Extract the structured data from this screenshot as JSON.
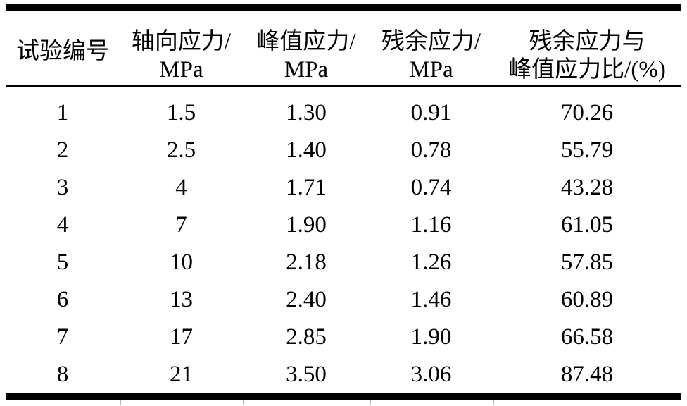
{
  "table": {
    "columns": [
      {
        "line1": "试验编号",
        "line2": ""
      },
      {
        "line1": "轴向应力/",
        "line2": "MPa"
      },
      {
        "line1": "峰值应力/",
        "line2": "MPa"
      },
      {
        "line1": "残余应力/",
        "line2": "MPa"
      },
      {
        "line1": "残余应力与",
        "line2": "峰值应力比/(%)"
      }
    ],
    "rows": [
      [
        "1",
        "1.5",
        "1.30",
        "0.91",
        "70.26"
      ],
      [
        "2",
        "2.5",
        "1.40",
        "0.78",
        "55.79"
      ],
      [
        "3",
        "4",
        "1.71",
        "0.74",
        "43.28"
      ],
      [
        "4",
        "7",
        "1.90",
        "1.16",
        "61.05"
      ],
      [
        "5",
        "10",
        "2.18",
        "1.26",
        "57.85"
      ],
      [
        "6",
        "13",
        "2.40",
        "1.46",
        "60.89"
      ],
      [
        "7",
        "17",
        "2.85",
        "1.90",
        "66.58"
      ],
      [
        "8",
        "21",
        "3.50",
        "3.06",
        "87.48"
      ]
    ]
  },
  "chart_data": {
    "type": "table",
    "columns": [
      "试验编号",
      "轴向应力/MPa",
      "峰值应力/MPa",
      "残余应力/MPa",
      "残余应力与峰值应力比/(%)"
    ],
    "rows": [
      [
        1,
        1.5,
        1.3,
        0.91,
        70.26
      ],
      [
        2,
        2.5,
        1.4,
        0.78,
        55.79
      ],
      [
        3,
        4,
        1.71,
        0.74,
        43.28
      ],
      [
        4,
        7,
        1.9,
        1.16,
        61.05
      ],
      [
        5,
        10,
        2.18,
        1.26,
        57.85
      ],
      [
        6,
        13,
        2.4,
        1.46,
        60.89
      ],
      [
        7,
        17,
        2.85,
        1.9,
        66.58
      ],
      [
        8,
        21,
        3.5,
        3.06,
        87.48
      ]
    ]
  },
  "colors": {
    "rule": "#000000",
    "text": "#000000",
    "background": "#ffffff",
    "boundary_tick": "#b9b9b9"
  }
}
